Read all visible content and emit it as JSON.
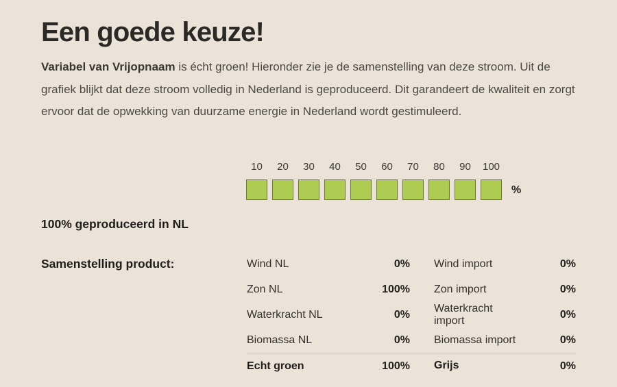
{
  "title": "Een goede keuze!",
  "intro": {
    "bold_lead": "Variabel van Vrijopnaam",
    "rest": " is écht groen! Hieronder zie je de samenstelling van deze stroom. Uit de grafiek blijkt dat deze stroom volledig in Nederland is geproduceerd. Dit garandeert de kwaliteit en zorgt ervoor dat de opwekking van duurzame energie in Nederland wordt gestimuleerd."
  },
  "chart_data": {
    "type": "bar",
    "subtype": "filled-square-percentage-scale",
    "categories": [
      10,
      20,
      30,
      40,
      50,
      60,
      70,
      80,
      90,
      100
    ],
    "values": [
      1,
      1,
      1,
      1,
      1,
      1,
      1,
      1,
      1,
      1
    ],
    "percent_filled": 100,
    "unit": "%",
    "fill_color": "#AECB52",
    "square_border_color": "#73705F",
    "xlim": [
      0,
      100
    ],
    "grid": false,
    "legend": false
  },
  "produced_label": "100% geproduceerd in NL",
  "composition": {
    "heading": "Samenstelling product:",
    "left_rows": [
      {
        "label": "Wind NL",
        "value": "0%"
      },
      {
        "label": "Zon NL",
        "value": "100%"
      },
      {
        "label": "Waterkracht NL",
        "value": "0%"
      },
      {
        "label": "Biomassa NL",
        "value": "0%"
      }
    ],
    "right_rows": [
      {
        "label": "Wind import",
        "value": "0%"
      },
      {
        "label": "Zon import",
        "value": "0%"
      },
      {
        "label": "Waterkracht import",
        "value": "0%"
      },
      {
        "label": "Biomassa import",
        "value": "0%"
      }
    ],
    "left_total": {
      "label": "Echt groen",
      "value": "100%"
    },
    "right_total": {
      "label": "Grijs",
      "value": "0%"
    }
  },
  "colors": {
    "background": "#ECE3D8",
    "accent_green": "#AECB52",
    "square_border": "#73705F",
    "divider": "#CBC3B7",
    "heading_text": "#2B2926",
    "body_text": "#4B4844"
  }
}
